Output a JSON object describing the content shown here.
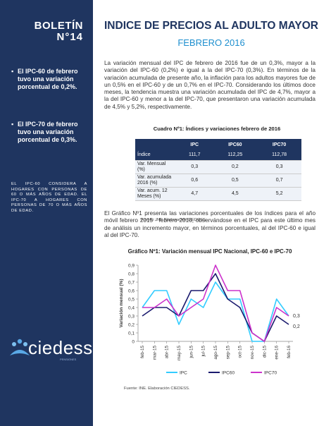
{
  "sidebar": {
    "boletin": "BOLETÍN",
    "numero": "N°14",
    "bullets": [
      "El IPC-60 de febrero tuvo una variación porcentual de 0,2%.",
      "El IPC-70 de febrero tuvo una variación porcentual de 0,3%."
    ],
    "note": "EL IPC-60 CONSIDERA A HOGARES CON PERSONAS DE 60 O MÁS AÑOS DE EDAD. EL IPC-70 A HOGARES CON PERSONAS DE 70 O MÁS AÑOS DE EDAD.",
    "logo_text": "ciedess",
    "logo_sub": "PENSIONES"
  },
  "header": {
    "title": "INDICE DE PRECIOS AL ADULTO MAYOR",
    "subtitle": "FEBRERO 2016"
  },
  "body": {
    "p1": "La variación mensual del IPC de febrero de 2016 fue de un 0,3%, mayor a la variación del IPC-60 (0,2%) e igual a la del IPC-70 (0,3%). En términos de la variación acumulada de presente año, la inflación para los adultos mayores fue de un 0,5% en el IPC-60 y de un 0,7% en el IPC-70. Considerando los últimos doce meses, la tendencia muestra una variación acumulada del IPC de 4,7%, mayor a la del IPC-60 y menor a la del IPC-70, que presentaron una variación acumulada de 4,5% y 5,2%, respectivamente.",
    "p2": "El Gráfico Nº1 presenta las variaciones porcentuales de los índices para el año móvil febrero 2015 - febrero 2016, observándose en el IPC para este último mes de análisis un incremento mayor, en términos porcentuales, al del IPC-60 e igual al del IPC-70."
  },
  "table": {
    "title": "Cuadro Nº1: Índices y variaciones febrero de 2016",
    "headers": [
      "",
      "IPC",
      "IPC60",
      "IPC70"
    ],
    "rows": [
      [
        "Índice",
        "111,7",
        "112,25",
        "112,78"
      ],
      [
        "Var. Mensual (%)",
        "0,3",
        "0,2",
        "0,3"
      ],
      [
        "Var. acumulada 2016 (%)",
        "0,6",
        "0,5",
        "0,7"
      ],
      [
        "Var. acum. 12 Meses (%)",
        "4,7",
        "4,5",
        "5,2"
      ]
    ],
    "source": "Fuente: INE. Elaboración CIEDESS."
  },
  "chart_title": "Gráfico Nº1: Variación mensual IPC Nacional, IPC-60 e IPC-70",
  "chart_source": "Fuente: INE. Elaboración CIEDESS.",
  "chart_data": {
    "type": "line",
    "categories": [
      "feb-15",
      "mar-15",
      "abr-15",
      "may-15",
      "jun-15",
      "jul-15",
      "ago-15",
      "sep-15",
      "oct-15",
      "nov-15",
      "dic-15",
      "ene-16",
      "feb-16"
    ],
    "series": [
      {
        "name": "IPC",
        "color": "#33ccff",
        "values": [
          0.4,
          0.6,
          0.6,
          0.2,
          0.5,
          0.4,
          0.7,
          0.5,
          0.5,
          0.0,
          0.0,
          0.5,
          0.3
        ]
      },
      {
        "name": "IPC60",
        "color": "#1a1a6e",
        "values": [
          0.3,
          0.4,
          0.4,
          0.3,
          0.6,
          0.6,
          0.8,
          0.5,
          0.4,
          0.1,
          0.0,
          0.3,
          0.2
        ]
      },
      {
        "name": "IPC70",
        "color": "#cc33cc",
        "values": [
          0.4,
          0.4,
          0.5,
          0.3,
          0.4,
          0.5,
          0.9,
          0.6,
          0.6,
          0.1,
          0.0,
          0.4,
          0.3
        ]
      }
    ],
    "end_labels": [
      "0,3",
      "0,2"
    ],
    "ylabel": "Variación mensual (%)",
    "ylim": [
      0,
      0.9
    ],
    "yticks": [
      "0",
      "0,1",
      "0,2",
      "0,3",
      "0,4",
      "0,5",
      "0,6",
      "0,7",
      "0,8",
      "0,9"
    ],
    "legend": "bottom"
  }
}
